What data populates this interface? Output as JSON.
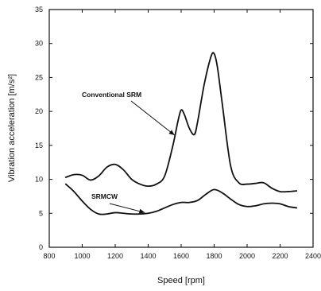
{
  "chart_data": {
    "type": "line",
    "xlabel": "Speed [rpm]",
    "ylabel": "Vibration acceleration [m/s²]",
    "xlim": [
      800,
      2400
    ],
    "ylim": [
      0,
      35
    ],
    "xticks": [
      800,
      1000,
      1200,
      1400,
      1600,
      1800,
      2000,
      2200,
      2400
    ],
    "yticks": [
      0,
      5,
      10,
      15,
      20,
      25,
      30,
      35
    ],
    "xtick_labels": [
      "800",
      "1000",
      "1200",
      "1400",
      "1600",
      "1800",
      "2000",
      "2200",
      "2400"
    ],
    "ytick_labels": [
      "0",
      "5",
      "10",
      "15",
      "20",
      "25",
      "30",
      "35"
    ],
    "grid": false,
    "series": [
      {
        "name": "Conventional SRM",
        "x": [
          900,
          950,
          1000,
          1050,
          1100,
          1150,
          1200,
          1250,
          1300,
          1350,
          1400,
          1450,
          1500,
          1550,
          1580,
          1600,
          1620,
          1650,
          1680,
          1700,
          1740,
          1780,
          1800,
          1820,
          1850,
          1900,
          1950,
          2000,
          2050,
          2100,
          2150,
          2200,
          2250,
          2300
        ],
        "y": [
          10.3,
          10.7,
          10.6,
          9.9,
          10.5,
          11.8,
          12.2,
          11.4,
          10.0,
          9.3,
          9.0,
          9.3,
          10.5,
          15.0,
          18.5,
          20.2,
          19.5,
          17.5,
          16.6,
          18.5,
          24.0,
          28.0,
          28.5,
          26.5,
          21.0,
          12.0,
          9.5,
          9.3,
          9.4,
          9.5,
          8.7,
          8.2,
          8.2,
          8.3
        ]
      },
      {
        "name": "SRMCW",
        "x": [
          900,
          950,
          1000,
          1050,
          1100,
          1150,
          1200,
          1250,
          1300,
          1350,
          1400,
          1450,
          1500,
          1550,
          1600,
          1650,
          1700,
          1750,
          1800,
          1850,
          1900,
          1950,
          2000,
          2050,
          2100,
          2150,
          2200,
          2250,
          2300
        ],
        "y": [
          9.3,
          8.2,
          6.8,
          5.6,
          4.9,
          4.9,
          5.1,
          5.0,
          4.9,
          4.9,
          5.0,
          5.3,
          5.8,
          6.3,
          6.6,
          6.6,
          6.9,
          7.8,
          8.5,
          8.0,
          7.1,
          6.3,
          6.0,
          6.1,
          6.4,
          6.5,
          6.4,
          6.0,
          5.8
        ]
      }
    ],
    "annotations": [
      {
        "text": "Conventional SRM",
        "target_series": "Conventional SRM",
        "target_x": 1560,
        "target_y": 16.5
      },
      {
        "text": "SRMCW",
        "target_series": "SRMCW",
        "target_x": 1380,
        "target_y": 5.1
      }
    ]
  }
}
